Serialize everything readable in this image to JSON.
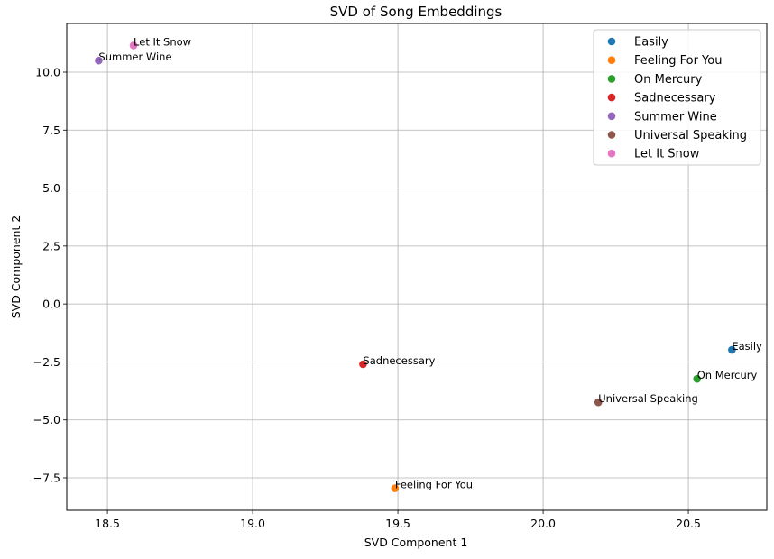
{
  "chart_data": {
    "type": "scatter",
    "title": "SVD of Song Embeddings",
    "xlabel": "SVD Component 1",
    "ylabel": "SVD Component 2",
    "xlim": [
      18.36,
      20.77
    ],
    "ylim": [
      -8.9,
      12.1
    ],
    "xticks": [
      18.5,
      19.0,
      19.5,
      20.0,
      20.5
    ],
    "xtick_labels": [
      "18.5",
      "19.0",
      "19.5",
      "20.0",
      "20.5"
    ],
    "yticks": [
      -7.5,
      -5.0,
      -2.5,
      0.0,
      2.5,
      5.0,
      7.5,
      10.0
    ],
    "ytick_labels": [
      "−7.5",
      "−5.0",
      "−2.5",
      "0.0",
      "2.5",
      "5.0",
      "7.5",
      "10.0"
    ],
    "grid": true,
    "legend_position": "top-right",
    "series": [
      {
        "name": "Easily",
        "color": "#1f77b4",
        "x": 20.65,
        "y": -1.98,
        "label": "Easily"
      },
      {
        "name": "Feeling For You",
        "color": "#ff7f0e",
        "x": 19.49,
        "y": -7.95,
        "label": "Feeling For You"
      },
      {
        "name": "On Mercury",
        "color": "#2ca02c",
        "x": 20.53,
        "y": -3.23,
        "label": "On Mercury"
      },
      {
        "name": "Sadnecessary",
        "color": "#d62728",
        "x": 19.38,
        "y": -2.6,
        "label": "Sadnecessary"
      },
      {
        "name": "Summer Wine",
        "color": "#9467bd",
        "x": 18.47,
        "y": 10.5,
        "label": "Summer Wine"
      },
      {
        "name": "Universal Speaking",
        "color": "#8c564b",
        "x": 20.19,
        "y": -4.24,
        "label": "Universal Speaking"
      },
      {
        "name": "Let It Snow",
        "color": "#e377c2",
        "x": 18.59,
        "y": 11.15,
        "label": "Let It Snow"
      }
    ]
  }
}
